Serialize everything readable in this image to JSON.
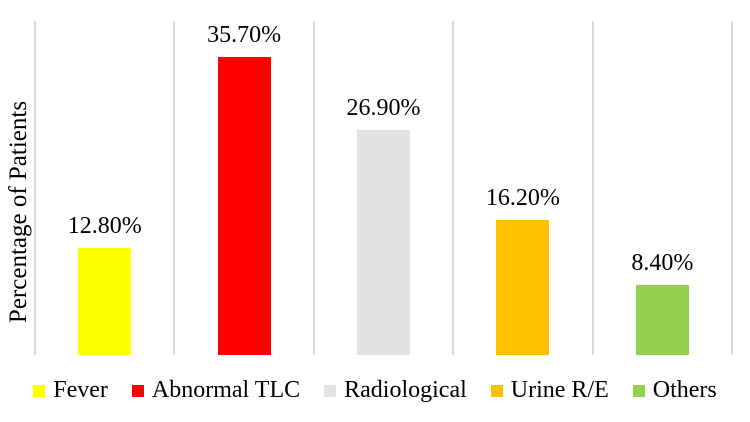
{
  "chart_data": {
    "type": "bar",
    "title": "",
    "xlabel": "",
    "ylabel": "Percentage of Patients",
    "ylim": [
      0,
      40
    ],
    "grid": "vertical-only",
    "legend_position": "bottom",
    "categories": [
      "Fever",
      "Abnormal TLC",
      "Radiological",
      "Urine R/E",
      "Others"
    ],
    "values": [
      12.8,
      35.7,
      26.9,
      16.2,
      8.4
    ],
    "data_labels": [
      "12.80%",
      "35.70%",
      "26.90%",
      "16.20%",
      "8.40%"
    ],
    "colors": [
      "#FFFF00",
      "#FF0000",
      "#E2E2E2",
      "#FFC000",
      "#92D050"
    ]
  },
  "colors": {
    "background": "#FFFFFF",
    "gridline": "#D9D9D9",
    "text": "#000000"
  }
}
